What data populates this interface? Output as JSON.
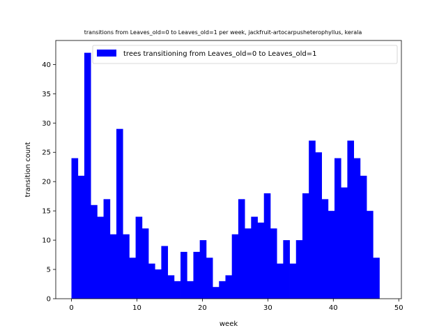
{
  "chart_data": {
    "type": "bar",
    "title": "transitions from Leaves_old=0 to Leaves_old=1 per week, jackfruit-artocarpusheterophyllus, kerala",
    "xlabel": "week",
    "ylabel": "transition count",
    "xlim": [
      -2.4,
      50.4
    ],
    "ylim": [
      0,
      44.1
    ],
    "xticks": [
      0,
      10,
      20,
      30,
      40,
      50
    ],
    "yticks": [
      0,
      5,
      10,
      15,
      20,
      25,
      30,
      35,
      40
    ],
    "bin_start": 0,
    "bin_width": 0.98,
    "bar_color": "#0000ff",
    "legend": {
      "label": "trees transitioning from Leaves_old=0 to Leaves_old=1",
      "location": "upper right"
    },
    "values": [
      24,
      21,
      42,
      16,
      14,
      17,
      11,
      29,
      11,
      7,
      14,
      12,
      6,
      5,
      9,
      4,
      3,
      8,
      3,
      8,
      10,
      7,
      2,
      3,
      4,
      11,
      17,
      12,
      14,
      13,
      18,
      12,
      6,
      10,
      6,
      10,
      18,
      27,
      25,
      17,
      15,
      24,
      19,
      27,
      24,
      21,
      15,
      7
    ]
  }
}
